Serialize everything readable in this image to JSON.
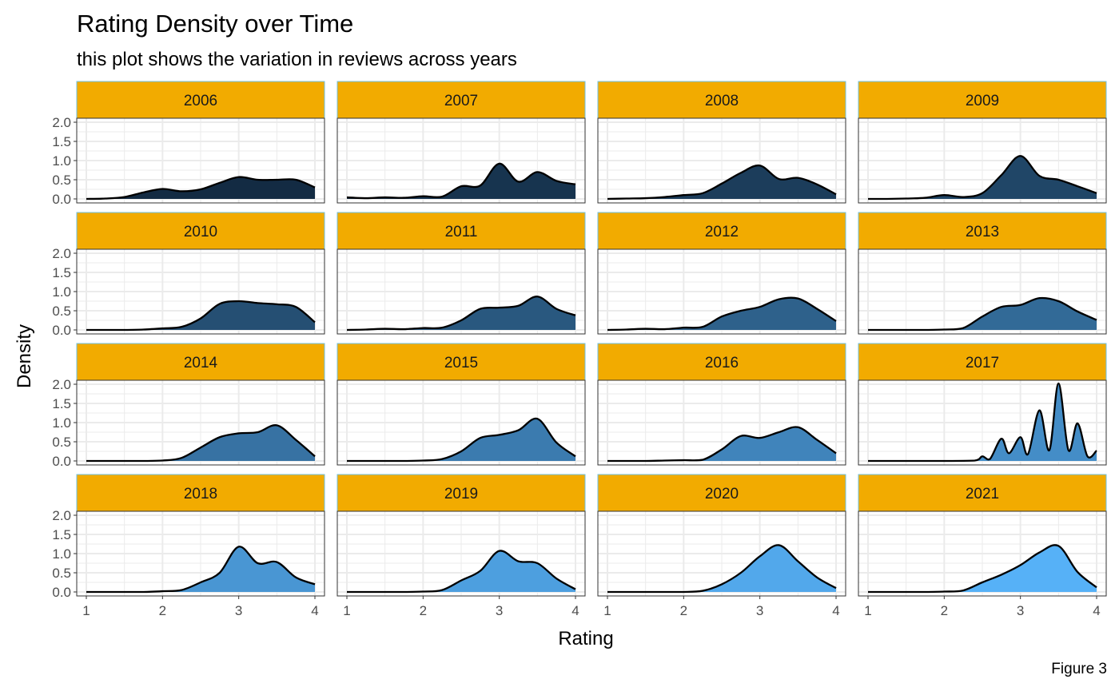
{
  "chart_data": {
    "type": "area",
    "title": "Rating Density over Time",
    "subtitle": "this plot shows the variation in reviews across years",
    "xlabel": "Rating",
    "ylabel": "Density",
    "caption": "Figure 3",
    "xlim": [
      1,
      4
    ],
    "ylim": [
      0,
      2
    ],
    "x_ticks": [
      1,
      2,
      3,
      4
    ],
    "y_ticks": [
      0.0,
      0.5,
      1.0,
      1.5,
      2.0
    ],
    "y_tick_labels": [
      "0.0",
      "0.5",
      "1.0",
      "1.5",
      "2.0"
    ],
    "grid": true,
    "facet_strip_color": "#F2AB00",
    "facet_strip_border": "#6EC0E6",
    "fill_gradient": [
      "#132B43",
      "#56B1F7"
    ],
    "outline_color": "#000000",
    "facets": [
      {
        "label": "2006",
        "points": [
          [
            1,
            0
          ],
          [
            1.25,
            0.01
          ],
          [
            1.5,
            0.05
          ],
          [
            1.75,
            0.17
          ],
          [
            2,
            0.26
          ],
          [
            2.25,
            0.2
          ],
          [
            2.5,
            0.25
          ],
          [
            2.75,
            0.42
          ],
          [
            3,
            0.57
          ],
          [
            3.25,
            0.5
          ],
          [
            3.5,
            0.5
          ],
          [
            3.75,
            0.5
          ],
          [
            4,
            0.3
          ]
        ]
      },
      {
        "label": "2007",
        "points": [
          [
            1,
            0.04
          ],
          [
            1.25,
            0.02
          ],
          [
            1.5,
            0.04
          ],
          [
            1.75,
            0.03
          ],
          [
            2,
            0.07
          ],
          [
            2.25,
            0.06
          ],
          [
            2.5,
            0.33
          ],
          [
            2.75,
            0.35
          ],
          [
            3,
            0.92
          ],
          [
            3.25,
            0.45
          ],
          [
            3.5,
            0.7
          ],
          [
            3.75,
            0.47
          ],
          [
            4,
            0.38
          ]
        ]
      },
      {
        "label": "2008",
        "points": [
          [
            1,
            0
          ],
          [
            1.25,
            0.01
          ],
          [
            1.5,
            0.02
          ],
          [
            1.75,
            0.05
          ],
          [
            2,
            0.1
          ],
          [
            2.25,
            0.15
          ],
          [
            2.5,
            0.4
          ],
          [
            2.75,
            0.68
          ],
          [
            3,
            0.87
          ],
          [
            3.25,
            0.52
          ],
          [
            3.5,
            0.55
          ],
          [
            3.75,
            0.38
          ],
          [
            4,
            0.12
          ]
        ]
      },
      {
        "label": "2009",
        "points": [
          [
            1,
            0
          ],
          [
            1.25,
            0
          ],
          [
            1.5,
            0.01
          ],
          [
            1.75,
            0.03
          ],
          [
            2,
            0.1
          ],
          [
            2.25,
            0.05
          ],
          [
            2.5,
            0.15
          ],
          [
            2.75,
            0.62
          ],
          [
            3,
            1.12
          ],
          [
            3.25,
            0.6
          ],
          [
            3.5,
            0.5
          ],
          [
            3.75,
            0.33
          ],
          [
            4,
            0.15
          ]
        ]
      },
      {
        "label": "2010",
        "points": [
          [
            1,
            0
          ],
          [
            1.25,
            0
          ],
          [
            1.5,
            0
          ],
          [
            1.75,
            0.01
          ],
          [
            2,
            0.04
          ],
          [
            2.25,
            0.08
          ],
          [
            2.5,
            0.3
          ],
          [
            2.75,
            0.68
          ],
          [
            3,
            0.75
          ],
          [
            3.25,
            0.7
          ],
          [
            3.5,
            0.67
          ],
          [
            3.75,
            0.6
          ],
          [
            4,
            0.2
          ]
        ]
      },
      {
        "label": "2011",
        "points": [
          [
            1,
            0
          ],
          [
            1.25,
            0.01
          ],
          [
            1.5,
            0.03
          ],
          [
            1.75,
            0.02
          ],
          [
            2,
            0.05
          ],
          [
            2.25,
            0.06
          ],
          [
            2.5,
            0.25
          ],
          [
            2.75,
            0.55
          ],
          [
            3,
            0.58
          ],
          [
            3.25,
            0.63
          ],
          [
            3.5,
            0.87
          ],
          [
            3.75,
            0.55
          ],
          [
            4,
            0.38
          ]
        ]
      },
      {
        "label": "2012",
        "points": [
          [
            1,
            0
          ],
          [
            1.25,
            0.01
          ],
          [
            1.5,
            0.03
          ],
          [
            1.75,
            0.02
          ],
          [
            2,
            0.06
          ],
          [
            2.25,
            0.08
          ],
          [
            2.5,
            0.35
          ],
          [
            2.75,
            0.5
          ],
          [
            3,
            0.6
          ],
          [
            3.25,
            0.8
          ],
          [
            3.5,
            0.82
          ],
          [
            3.75,
            0.55
          ],
          [
            4,
            0.23
          ]
        ]
      },
      {
        "label": "2013",
        "points": [
          [
            1,
            0
          ],
          [
            1.25,
            0
          ],
          [
            1.5,
            0
          ],
          [
            1.75,
            0
          ],
          [
            2,
            0.01
          ],
          [
            2.25,
            0.05
          ],
          [
            2.5,
            0.35
          ],
          [
            2.75,
            0.6
          ],
          [
            3,
            0.65
          ],
          [
            3.25,
            0.83
          ],
          [
            3.5,
            0.75
          ],
          [
            3.75,
            0.48
          ],
          [
            4,
            0.26
          ]
        ]
      },
      {
        "label": "2014",
        "points": [
          [
            1,
            0
          ],
          [
            1.25,
            0
          ],
          [
            1.5,
            0
          ],
          [
            1.75,
            0
          ],
          [
            2,
            0.01
          ],
          [
            2.25,
            0.08
          ],
          [
            2.5,
            0.35
          ],
          [
            2.75,
            0.62
          ],
          [
            3,
            0.72
          ],
          [
            3.25,
            0.75
          ],
          [
            3.5,
            0.93
          ],
          [
            3.75,
            0.55
          ],
          [
            4,
            0.12
          ]
        ]
      },
      {
        "label": "2015",
        "points": [
          [
            1,
            0
          ],
          [
            1.25,
            0
          ],
          [
            1.5,
            0
          ],
          [
            1.75,
            0
          ],
          [
            2,
            0.01
          ],
          [
            2.25,
            0.05
          ],
          [
            2.5,
            0.25
          ],
          [
            2.75,
            0.6
          ],
          [
            3,
            0.68
          ],
          [
            3.25,
            0.8
          ],
          [
            3.5,
            1.1
          ],
          [
            3.75,
            0.48
          ],
          [
            4,
            0.12
          ]
        ]
      },
      {
        "label": "2016",
        "points": [
          [
            1,
            0
          ],
          [
            1.25,
            0
          ],
          [
            1.5,
            0
          ],
          [
            1.75,
            0.01
          ],
          [
            2,
            0.02
          ],
          [
            2.25,
            0.03
          ],
          [
            2.5,
            0.3
          ],
          [
            2.75,
            0.65
          ],
          [
            3,
            0.6
          ],
          [
            3.25,
            0.75
          ],
          [
            3.5,
            0.88
          ],
          [
            3.75,
            0.55
          ],
          [
            4,
            0.2
          ]
        ]
      },
      {
        "label": "2017",
        "points": [
          [
            1,
            0
          ],
          [
            1.5,
            0
          ],
          [
            2,
            0
          ],
          [
            2.4,
            0.01
          ],
          [
            2.5,
            0.12
          ],
          [
            2.6,
            0.05
          ],
          [
            2.75,
            0.58
          ],
          [
            2.85,
            0.2
          ],
          [
            3,
            0.62
          ],
          [
            3.1,
            0.18
          ],
          [
            3.25,
            1.32
          ],
          [
            3.38,
            0.28
          ],
          [
            3.5,
            2.02
          ],
          [
            3.63,
            0.28
          ],
          [
            3.75,
            0.98
          ],
          [
            3.88,
            0.12
          ],
          [
            4,
            0.27
          ]
        ]
      },
      {
        "label": "2018",
        "points": [
          [
            1,
            0
          ],
          [
            1.25,
            0
          ],
          [
            1.5,
            0
          ],
          [
            1.75,
            0
          ],
          [
            2,
            0.02
          ],
          [
            2.25,
            0.05
          ],
          [
            2.5,
            0.25
          ],
          [
            2.75,
            0.5
          ],
          [
            3,
            1.18
          ],
          [
            3.25,
            0.75
          ],
          [
            3.5,
            0.78
          ],
          [
            3.75,
            0.38
          ],
          [
            4,
            0.2
          ]
        ]
      },
      {
        "label": "2019",
        "points": [
          [
            1,
            0
          ],
          [
            1.25,
            0
          ],
          [
            1.5,
            0
          ],
          [
            1.75,
            0
          ],
          [
            2,
            0.01
          ],
          [
            2.25,
            0.05
          ],
          [
            2.5,
            0.3
          ],
          [
            2.75,
            0.55
          ],
          [
            3,
            1.07
          ],
          [
            3.25,
            0.8
          ],
          [
            3.5,
            0.75
          ],
          [
            3.75,
            0.35
          ],
          [
            4,
            0.07
          ]
        ]
      },
      {
        "label": "2020",
        "points": [
          [
            1,
            0
          ],
          [
            1.25,
            0
          ],
          [
            1.5,
            0
          ],
          [
            1.75,
            0
          ],
          [
            2,
            0
          ],
          [
            2.25,
            0.03
          ],
          [
            2.5,
            0.2
          ],
          [
            2.75,
            0.5
          ],
          [
            3,
            0.93
          ],
          [
            3.25,
            1.22
          ],
          [
            3.5,
            0.8
          ],
          [
            3.75,
            0.38
          ],
          [
            4,
            0.1
          ]
        ]
      },
      {
        "label": "2021",
        "points": [
          [
            1,
            0
          ],
          [
            1.25,
            0
          ],
          [
            1.5,
            0
          ],
          [
            1.75,
            0
          ],
          [
            2,
            0.01
          ],
          [
            2.25,
            0.04
          ],
          [
            2.5,
            0.25
          ],
          [
            2.75,
            0.45
          ],
          [
            3,
            0.7
          ],
          [
            3.25,
            1.03
          ],
          [
            3.5,
            1.2
          ],
          [
            3.75,
            0.52
          ],
          [
            4,
            0.12
          ]
        ]
      }
    ]
  }
}
